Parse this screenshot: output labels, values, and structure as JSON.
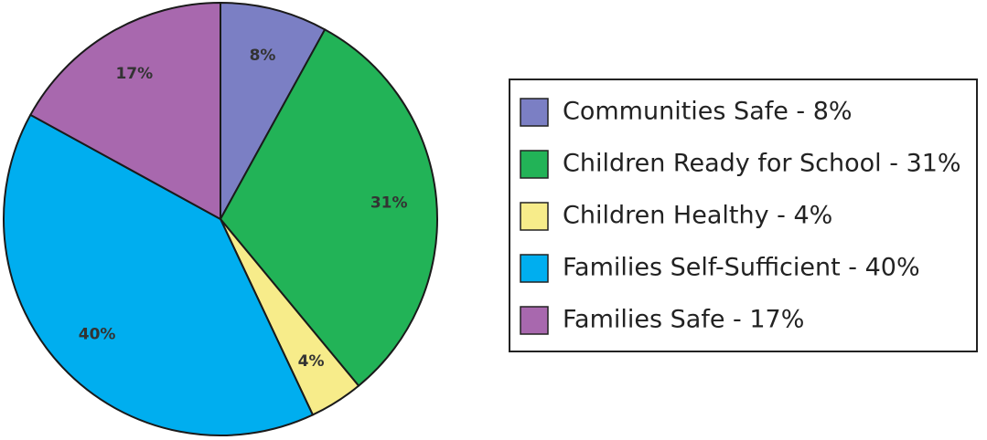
{
  "chart_data": {
    "type": "pie",
    "title": "",
    "legend_position": "right",
    "slices": [
      {
        "label": "Communities Safe",
        "value": 8,
        "slice_label": "8%",
        "legend_label": "Communities Safe - 8%",
        "color": "#7b7fc4"
      },
      {
        "label": "Children Ready for School",
        "value": 31,
        "slice_label": "31%",
        "legend_label": "Children Ready for School - 31%",
        "color": "#22b357"
      },
      {
        "label": "Children Healthy",
        "value": 4,
        "slice_label": "4%",
        "legend_label": "Children Healthy - 4%",
        "color": "#f7ec8a"
      },
      {
        "label": "Families Self-Sufficient",
        "value": 40,
        "slice_label": "40%",
        "legend_label": "Families Self-Sufficient - 40%",
        "color": "#00aeef"
      },
      {
        "label": "Families Safe",
        "value": 17,
        "slice_label": "17%",
        "legend_label": "Families Safe - 17%",
        "color": "#a868ae"
      }
    ]
  }
}
